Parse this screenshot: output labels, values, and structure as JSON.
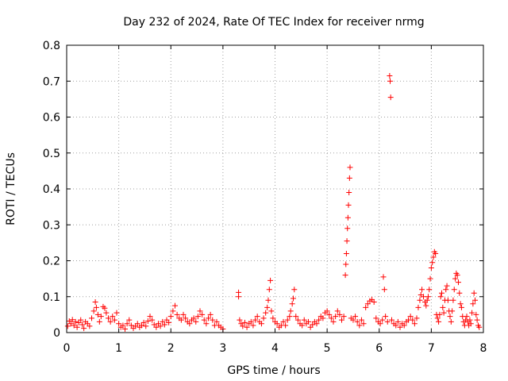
{
  "chart_data": {
    "type": "scatter",
    "title": "Day 232 of 2024, Rate Of TEC Index for receiver nrmg",
    "xlabel": "GPS time / hours",
    "ylabel": "ROTI / TECUs",
    "xlim": [
      0,
      8
    ],
    "ylim": [
      0,
      0.8
    ],
    "xticks": [
      "0",
      "1",
      "2",
      "3",
      "4",
      "5",
      "6",
      "7",
      "8"
    ],
    "yticks": [
      "0",
      "0.1",
      "0.2",
      "0.3",
      "0.4",
      "0.5",
      "0.6",
      "0.7",
      "0.8"
    ],
    "grid": true,
    "marker": "plus",
    "color": "#ff0000",
    "series": [
      {
        "points": [
          [
            0.02,
            0.018
          ],
          [
            0.05,
            0.032
          ],
          [
            0.08,
            0.025
          ],
          [
            0.11,
            0.036
          ],
          [
            0.14,
            0.02
          ],
          [
            0.17,
            0.03
          ],
          [
            0.2,
            0.015
          ],
          [
            0.23,
            0.028
          ],
          [
            0.27,
            0.035
          ],
          [
            0.3,
            0.022
          ],
          [
            0.33,
            0.012
          ],
          [
            0.36,
            0.03
          ],
          [
            0.4,
            0.025
          ],
          [
            0.44,
            0.018
          ],
          [
            0.48,
            0.04
          ],
          [
            0.52,
            0.06
          ],
          [
            0.55,
            0.085
          ],
          [
            0.57,
            0.07
          ],
          [
            0.6,
            0.05
          ],
          [
            0.63,
            0.03
          ],
          [
            0.66,
            0.045
          ],
          [
            0.7,
            0.072
          ],
          [
            0.73,
            0.068
          ],
          [
            0.76,
            0.055
          ],
          [
            0.8,
            0.04
          ],
          [
            0.84,
            0.03
          ],
          [
            0.88,
            0.045
          ],
          [
            0.92,
            0.035
          ],
          [
            0.96,
            0.055
          ],
          [
            1.0,
            0.025
          ],
          [
            1.04,
            0.015
          ],
          [
            1.08,
            0.02
          ],
          [
            1.12,
            0.01
          ],
          [
            1.16,
            0.025
          ],
          [
            1.2,
            0.035
          ],
          [
            1.24,
            0.02
          ],
          [
            1.28,
            0.012
          ],
          [
            1.32,
            0.018
          ],
          [
            1.36,
            0.025
          ],
          [
            1.4,
            0.015
          ],
          [
            1.44,
            0.02
          ],
          [
            1.48,
            0.028
          ],
          [
            1.52,
            0.018
          ],
          [
            1.56,
            0.032
          ],
          [
            1.6,
            0.045
          ],
          [
            1.64,
            0.035
          ],
          [
            1.68,
            0.022
          ],
          [
            1.72,
            0.015
          ],
          [
            1.76,
            0.025
          ],
          [
            1.8,
            0.018
          ],
          [
            1.84,
            0.03
          ],
          [
            1.88,
            0.022
          ],
          [
            1.92,
            0.035
          ],
          [
            1.96,
            0.028
          ],
          [
            2.0,
            0.045
          ],
          [
            2.04,
            0.06
          ],
          [
            2.08,
            0.075
          ],
          [
            2.12,
            0.05
          ],
          [
            2.16,
            0.04
          ],
          [
            2.2,
            0.035
          ],
          [
            2.24,
            0.05
          ],
          [
            2.28,
            0.04
          ],
          [
            2.32,
            0.03
          ],
          [
            2.36,
            0.025
          ],
          [
            2.4,
            0.035
          ],
          [
            2.44,
            0.04
          ],
          [
            2.48,
            0.03
          ],
          [
            2.52,
            0.045
          ],
          [
            2.56,
            0.06
          ],
          [
            2.6,
            0.05
          ],
          [
            2.64,
            0.035
          ],
          [
            2.68,
            0.025
          ],
          [
            2.72,
            0.04
          ],
          [
            2.76,
            0.05
          ],
          [
            2.8,
            0.035
          ],
          [
            2.84,
            0.02
          ],
          [
            2.88,
            0.03
          ],
          [
            2.92,
            0.02
          ],
          [
            2.96,
            0.015
          ],
          [
            3.0,
            0.01
          ],
          [
            3.3,
            0.112
          ],
          [
            3.3,
            0.1
          ],
          [
            3.32,
            0.035
          ],
          [
            3.35,
            0.025
          ],
          [
            3.38,
            0.018
          ],
          [
            3.42,
            0.028
          ],
          [
            3.46,
            0.015
          ],
          [
            3.5,
            0.025
          ],
          [
            3.54,
            0.03
          ],
          [
            3.58,
            0.02
          ],
          [
            3.62,
            0.035
          ],
          [
            3.66,
            0.045
          ],
          [
            3.7,
            0.03
          ],
          [
            3.74,
            0.025
          ],
          [
            3.78,
            0.04
          ],
          [
            3.82,
            0.055
          ],
          [
            3.85,
            0.07
          ],
          [
            3.87,
            0.09
          ],
          [
            3.89,
            0.12
          ],
          [
            3.91,
            0.145
          ],
          [
            3.93,
            0.06
          ],
          [
            3.96,
            0.04
          ],
          [
            4.0,
            0.03
          ],
          [
            4.04,
            0.025
          ],
          [
            4.08,
            0.015
          ],
          [
            4.12,
            0.02
          ],
          [
            4.16,
            0.03
          ],
          [
            4.2,
            0.02
          ],
          [
            4.24,
            0.035
          ],
          [
            4.28,
            0.045
          ],
          [
            4.3,
            0.06
          ],
          [
            4.33,
            0.08
          ],
          [
            4.35,
            0.095
          ],
          [
            4.37,
            0.12
          ],
          [
            4.4,
            0.045
          ],
          [
            4.44,
            0.035
          ],
          [
            4.48,
            0.025
          ],
          [
            4.52,
            0.02
          ],
          [
            4.56,
            0.035
          ],
          [
            4.6,
            0.025
          ],
          [
            4.64,
            0.03
          ],
          [
            4.68,
            0.015
          ],
          [
            4.72,
            0.022
          ],
          [
            4.76,
            0.03
          ],
          [
            4.8,
            0.025
          ],
          [
            4.84,
            0.035
          ],
          [
            4.88,
            0.045
          ],
          [
            4.92,
            0.04
          ],
          [
            4.96,
            0.055
          ],
          [
            5.0,
            0.06
          ],
          [
            5.04,
            0.05
          ],
          [
            5.08,
            0.04
          ],
          [
            5.12,
            0.03
          ],
          [
            5.16,
            0.045
          ],
          [
            5.2,
            0.06
          ],
          [
            5.24,
            0.05
          ],
          [
            5.28,
            0.035
          ],
          [
            5.32,
            0.045
          ],
          [
            5.35,
            0.16
          ],
          [
            5.36,
            0.19
          ],
          [
            5.37,
            0.22
          ],
          [
            5.38,
            0.255
          ],
          [
            5.39,
            0.29
          ],
          [
            5.4,
            0.32
          ],
          [
            5.41,
            0.355
          ],
          [
            5.42,
            0.39
          ],
          [
            5.43,
            0.43
          ],
          [
            5.44,
            0.46
          ],
          [
            5.46,
            0.04
          ],
          [
            5.5,
            0.035
          ],
          [
            5.54,
            0.045
          ],
          [
            5.58,
            0.03
          ],
          [
            5.62,
            0.02
          ],
          [
            5.66,
            0.035
          ],
          [
            5.7,
            0.025
          ],
          [
            5.74,
            0.07
          ],
          [
            5.78,
            0.08
          ],
          [
            5.82,
            0.088
          ],
          [
            5.86,
            0.092
          ],
          [
            5.9,
            0.085
          ],
          [
            5.94,
            0.04
          ],
          [
            5.98,
            0.03
          ],
          [
            6.02,
            0.025
          ],
          [
            6.06,
            0.035
          ],
          [
            6.08,
            0.155
          ],
          [
            6.1,
            0.12
          ],
          [
            6.12,
            0.045
          ],
          [
            6.16,
            0.03
          ],
          [
            6.2,
            0.715
          ],
          [
            6.21,
            0.7
          ],
          [
            6.22,
            0.655
          ],
          [
            6.24,
            0.035
          ],
          [
            6.28,
            0.025
          ],
          [
            6.32,
            0.02
          ],
          [
            6.36,
            0.03
          ],
          [
            6.4,
            0.015
          ],
          [
            6.44,
            0.025
          ],
          [
            6.48,
            0.02
          ],
          [
            6.52,
            0.03
          ],
          [
            6.56,
            0.035
          ],
          [
            6.6,
            0.045
          ],
          [
            6.64,
            0.035
          ],
          [
            6.68,
            0.025
          ],
          [
            6.72,
            0.04
          ],
          [
            6.75,
            0.07
          ],
          [
            6.78,
            0.09
          ],
          [
            6.8,
            0.105
          ],
          [
            6.82,
            0.12
          ],
          [
            6.85,
            0.1
          ],
          [
            6.88,
            0.085
          ],
          [
            6.9,
            0.075
          ],
          [
            6.92,
            0.09
          ],
          [
            6.94,
            0.1
          ],
          [
            6.96,
            0.12
          ],
          [
            6.98,
            0.15
          ],
          [
            7.0,
            0.18
          ],
          [
            7.02,
            0.195
          ],
          [
            7.04,
            0.21
          ],
          [
            7.06,
            0.225
          ],
          [
            7.08,
            0.22
          ],
          [
            7.1,
            0.05
          ],
          [
            7.12,
            0.04
          ],
          [
            7.14,
            0.03
          ],
          [
            7.16,
            0.05
          ],
          [
            7.18,
            0.1
          ],
          [
            7.2,
            0.11
          ],
          [
            7.22,
            0.07
          ],
          [
            7.24,
            0.055
          ],
          [
            7.26,
            0.09
          ],
          [
            7.28,
            0.12
          ],
          [
            7.3,
            0.13
          ],
          [
            7.32,
            0.09
          ],
          [
            7.34,
            0.06
          ],
          [
            7.36,
            0.045
          ],
          [
            7.38,
            0.03
          ],
          [
            7.4,
            0.06
          ],
          [
            7.42,
            0.09
          ],
          [
            7.44,
            0.12
          ],
          [
            7.46,
            0.15
          ],
          [
            7.48,
            0.165
          ],
          [
            7.5,
            0.16
          ],
          [
            7.52,
            0.14
          ],
          [
            7.54,
            0.11
          ],
          [
            7.56,
            0.08
          ],
          [
            7.58,
            0.07
          ],
          [
            7.6,
            0.045
          ],
          [
            7.62,
            0.03
          ],
          [
            7.64,
            0.02
          ],
          [
            7.66,
            0.035
          ],
          [
            7.68,
            0.045
          ],
          [
            7.7,
            0.03
          ],
          [
            7.72,
            0.02
          ],
          [
            7.74,
            0.035
          ],
          [
            7.76,
            0.025
          ],
          [
            7.78,
            0.055
          ],
          [
            7.8,
            0.08
          ],
          [
            7.82,
            0.11
          ],
          [
            7.84,
            0.09
          ],
          [
            7.86,
            0.05
          ],
          [
            7.88,
            0.035
          ],
          [
            7.9,
            0.02
          ],
          [
            7.92,
            0.015
          ]
        ]
      }
    ]
  }
}
